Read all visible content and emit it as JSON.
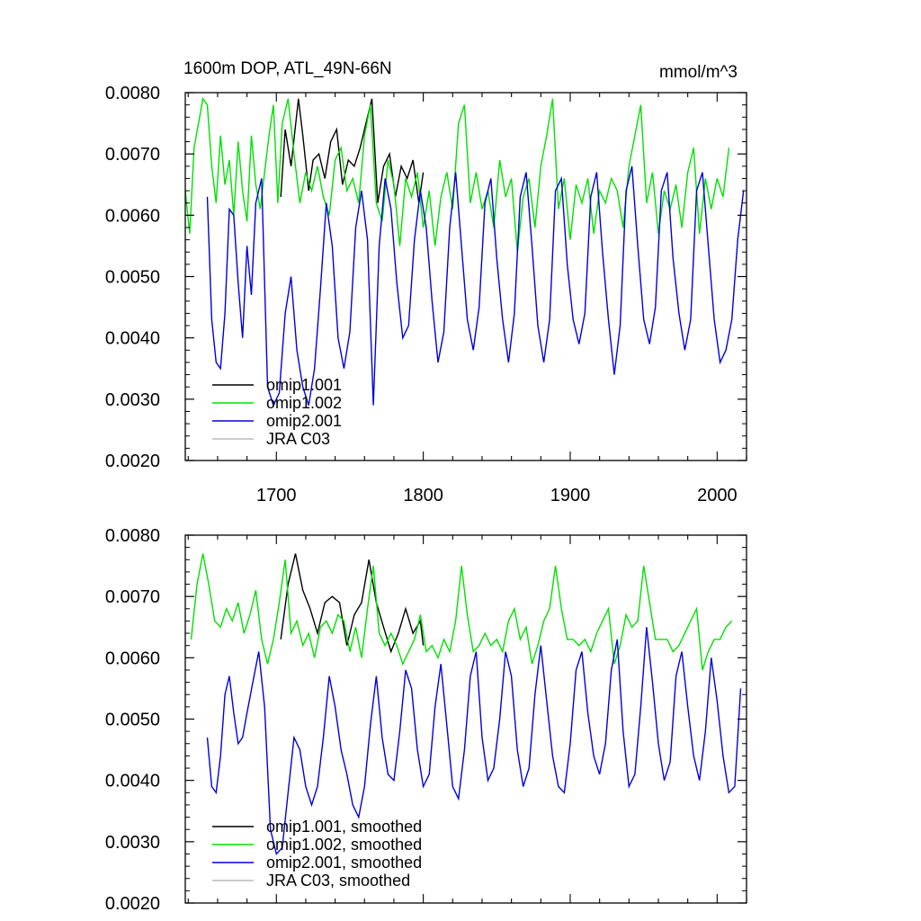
{
  "title_left": "1600m DOP, ATL_49N-66N",
  "title_right": "mmol/m^3",
  "colors": {
    "omip1_001": "#000000",
    "omip1_002": "#00e000",
    "omip2_001": "#0000dd",
    "jra_c03": "#bbbbbb"
  },
  "chart_data": [
    {
      "type": "line",
      "title": "1600m DOP, ATL_49N-66N",
      "units": "mmol/m^3",
      "xlim": [
        1638,
        2020
      ],
      "ylim": [
        0.002,
        0.008
      ],
      "x_ticks": [
        1700,
        1800,
        1900,
        2000
      ],
      "x_tick_labels": [
        "1700",
        "1800",
        "1900",
        "2000"
      ],
      "y_ticks": [
        0.002,
        0.003,
        0.004,
        0.005,
        0.006,
        0.007,
        0.008
      ],
      "y_tick_labels": [
        "0.0020",
        "0.0030",
        "0.0040",
        "0.0050",
        "0.0060",
        "0.0070",
        "0.0080"
      ],
      "legend": [
        "omip1.001",
        "omip1.002",
        "omip2.001",
        "JRA C03"
      ],
      "series": [
        {
          "name": "omip1.001",
          "color": "#000000",
          "x": [
            1703,
            1706,
            1710,
            1715,
            1718,
            1722,
            1725,
            1729,
            1733,
            1737,
            1741,
            1745,
            1749,
            1753,
            1757,
            1761,
            1765,
            1769,
            1773,
            1777,
            1781,
            1785,
            1789,
            1793,
            1797,
            1800
          ],
          "y": [
            0.0063,
            0.0074,
            0.0068,
            0.0079,
            0.0073,
            0.0064,
            0.0069,
            0.007,
            0.0066,
            0.0072,
            0.0074,
            0.0065,
            0.0069,
            0.0068,
            0.0071,
            0.0075,
            0.0079,
            0.0062,
            0.0068,
            0.007,
            0.0063,
            0.0068,
            0.0066,
            0.0069,
            0.0062,
            0.0067
          ]
        },
        {
          "name": "omip1.002",
          "color": "#00e000",
          "x": [
            1638,
            1641,
            1644,
            1647,
            1650,
            1653,
            1656,
            1659,
            1662,
            1665,
            1668,
            1671,
            1674,
            1677,
            1680,
            1683,
            1686,
            1689,
            1692,
            1695,
            1698,
            1701,
            1704,
            1708,
            1712,
            1716,
            1720,
            1724,
            1728,
            1732,
            1736,
            1740,
            1744,
            1748,
            1752,
            1756,
            1760,
            1764,
            1768,
            1772,
            1776,
            1780,
            1784,
            1788,
            1792,
            1796,
            1800,
            1804,
            1808,
            1812,
            1816,
            1820,
            1824,
            1828,
            1832,
            1836,
            1840,
            1844,
            1848,
            1852,
            1856,
            1860,
            1864,
            1868,
            1872,
            1876,
            1880,
            1884,
            1888,
            1892,
            1896,
            1900,
            1904,
            1908,
            1912,
            1916,
            1920,
            1924,
            1928,
            1932,
            1936,
            1940,
            1944,
            1948,
            1952,
            1956,
            1960,
            1964,
            1968,
            1972,
            1976,
            1980,
            1984,
            1988,
            1992,
            1996,
            2000,
            2004,
            2008
          ],
          "y": [
            0.0064,
            0.0057,
            0.0071,
            0.0075,
            0.0079,
            0.0078,
            0.0068,
            0.0062,
            0.0073,
            0.0065,
            0.0069,
            0.006,
            0.0072,
            0.0064,
            0.0059,
            0.0073,
            0.0065,
            0.0061,
            0.0067,
            0.0073,
            0.0078,
            0.0062,
            0.0075,
            0.0079,
            0.007,
            0.0062,
            0.0067,
            0.0064,
            0.0068,
            0.0063,
            0.006,
            0.0069,
            0.0071,
            0.0064,
            0.0066,
            0.0062,
            0.0073,
            0.0078,
            0.0062,
            0.0059,
            0.0069,
            0.0065,
            0.0055,
            0.0066,
            0.0063,
            0.0067,
            0.0058,
            0.0064,
            0.0055,
            0.0063,
            0.0067,
            0.0061,
            0.0075,
            0.0078,
            0.0062,
            0.0067,
            0.0061,
            0.0064,
            0.0058,
            0.0069,
            0.0063,
            0.0066,
            0.0054,
            0.0063,
            0.0066,
            0.0058,
            0.0068,
            0.0073,
            0.0079,
            0.0061,
            0.0066,
            0.0056,
            0.0065,
            0.0062,
            0.0066,
            0.0057,
            0.0064,
            0.0062,
            0.0066,
            0.0064,
            0.0058,
            0.0068,
            0.0073,
            0.0078,
            0.0062,
            0.0067,
            0.0057,
            0.0064,
            0.0061,
            0.0065,
            0.0058,
            0.0067,
            0.0071,
            0.0057,
            0.0066,
            0.0061,
            0.0066,
            0.0063,
            0.0071
          ]
        },
        {
          "name": "omip2.001",
          "color": "#0000dd",
          "x": [
            1653,
            1656,
            1659,
            1662,
            1665,
            1668,
            1671,
            1674,
            1677,
            1680,
            1683,
            1686,
            1690,
            1694,
            1698,
            1702,
            1706,
            1710,
            1714,
            1718,
            1722,
            1726,
            1730,
            1734,
            1738,
            1742,
            1746,
            1750,
            1754,
            1758,
            1762,
            1766,
            1770,
            1774,
            1778,
            1782,
            1786,
            1790,
            1794,
            1798,
            1802,
            1806,
            1810,
            1814,
            1818,
            1822,
            1826,
            1830,
            1834,
            1838,
            1842,
            1846,
            1850,
            1854,
            1858,
            1862,
            1866,
            1870,
            1874,
            1878,
            1882,
            1886,
            1890,
            1894,
            1898,
            1902,
            1906,
            1910,
            1914,
            1918,
            1922,
            1926,
            1930,
            1934,
            1938,
            1942,
            1946,
            1950,
            1954,
            1958,
            1962,
            1966,
            1970,
            1974,
            1978,
            1982,
            1986,
            1990,
            1994,
            1998,
            2002,
            2006,
            2010,
            2014,
            2018
          ],
          "y": [
            0.0063,
            0.0043,
            0.0036,
            0.0035,
            0.0044,
            0.0061,
            0.006,
            0.0049,
            0.004,
            0.0055,
            0.0047,
            0.0062,
            0.0066,
            0.0032,
            0.0029,
            0.0031,
            0.0044,
            0.005,
            0.0038,
            0.0032,
            0.0029,
            0.0035,
            0.0048,
            0.0062,
            0.0055,
            0.004,
            0.0035,
            0.0041,
            0.0058,
            0.0064,
            0.0056,
            0.0029,
            0.0055,
            0.0066,
            0.0061,
            0.0049,
            0.004,
            0.0042,
            0.0056,
            0.0064,
            0.0058,
            0.0046,
            0.0036,
            0.0041,
            0.0058,
            0.0067,
            0.0055,
            0.0043,
            0.0038,
            0.0045,
            0.0062,
            0.0066,
            0.0053,
            0.0043,
            0.0036,
            0.0044,
            0.0063,
            0.0067,
            0.0055,
            0.0042,
            0.0036,
            0.0043,
            0.0064,
            0.0066,
            0.0052,
            0.0043,
            0.0039,
            0.0044,
            0.0063,
            0.0067,
            0.0054,
            0.0043,
            0.0034,
            0.0042,
            0.0064,
            0.0068,
            0.0055,
            0.0043,
            0.0039,
            0.0045,
            0.0064,
            0.0067,
            0.0053,
            0.0044,
            0.0038,
            0.0043,
            0.0064,
            0.0067,
            0.0055,
            0.0043,
            0.0036,
            0.0038,
            0.0043,
            0.0056,
            0.0064
          ]
        },
        {
          "name": "JRA C03",
          "color": "#bbbbbb",
          "x": [],
          "y": []
        }
      ]
    },
    {
      "type": "line",
      "xlim": [
        1638,
        2020
      ],
      "ylim": [
        0.002,
        0.008
      ],
      "x_ticks": [
        1700,
        1800,
        1900,
        2000
      ],
      "y_ticks": [
        0.002,
        0.003,
        0.004,
        0.005,
        0.006,
        0.007,
        0.008
      ],
      "y_tick_labels": [
        "0.0020",
        "0.0030",
        "0.0040",
        "0.0050",
        "0.0060",
        "0.0070",
        "0.0080"
      ],
      "legend": [
        "omip1.001, smoothed",
        "omip1.002, smoothed",
        "omip2.001, smoothed",
        "JRA C03, smoothed"
      ],
      "series": [
        {
          "name": "omip1.001, smoothed",
          "color": "#000000",
          "x": [
            1703,
            1708,
            1713,
            1718,
            1723,
            1728,
            1733,
            1738,
            1743,
            1748,
            1753,
            1758,
            1763,
            1768,
            1773,
            1778,
            1783,
            1788,
            1793,
            1798,
            1800
          ],
          "y": [
            0.0063,
            0.0072,
            0.0077,
            0.0071,
            0.0068,
            0.0064,
            0.0069,
            0.007,
            0.0069,
            0.0062,
            0.0067,
            0.0069,
            0.0076,
            0.0069,
            0.0065,
            0.0061,
            0.0064,
            0.0068,
            0.0064,
            0.0066,
            0.0062
          ]
        },
        {
          "name": "omip1.002, smoothed",
          "color": "#00e000",
          "x": [
            1642,
            1646,
            1650,
            1654,
            1658,
            1662,
            1666,
            1670,
            1674,
            1678,
            1682,
            1686,
            1690,
            1694,
            1698,
            1702,
            1706,
            1710,
            1714,
            1718,
            1722,
            1726,
            1730,
            1734,
            1738,
            1742,
            1746,
            1750,
            1754,
            1758,
            1762,
            1766,
            1770,
            1774,
            1778,
            1782,
            1786,
            1790,
            1794,
            1798,
            1802,
            1806,
            1810,
            1814,
            1818,
            1822,
            1826,
            1830,
            1834,
            1838,
            1842,
            1846,
            1850,
            1854,
            1858,
            1862,
            1866,
            1870,
            1874,
            1878,
            1882,
            1886,
            1890,
            1894,
            1898,
            1902,
            1906,
            1910,
            1914,
            1918,
            1922,
            1926,
            1930,
            1934,
            1938,
            1942,
            1946,
            1950,
            1954,
            1958,
            1962,
            1966,
            1970,
            1974,
            1978,
            1982,
            1986,
            1990,
            1994,
            1998,
            2002,
            2006,
            2010
          ],
          "y": [
            0.0063,
            0.0072,
            0.0077,
            0.0072,
            0.0066,
            0.0065,
            0.0068,
            0.0066,
            0.0069,
            0.0064,
            0.0067,
            0.0071,
            0.0063,
            0.0059,
            0.0063,
            0.0069,
            0.0076,
            0.0064,
            0.0066,
            0.0062,
            0.0064,
            0.006,
            0.0065,
            0.0066,
            0.0064,
            0.0067,
            0.0066,
            0.0061,
            0.0065,
            0.006,
            0.0068,
            0.0075,
            0.0064,
            0.0062,
            0.0064,
            0.0062,
            0.0059,
            0.0061,
            0.0063,
            0.0067,
            0.0061,
            0.0062,
            0.006,
            0.0063,
            0.0061,
            0.0066,
            0.0075,
            0.0067,
            0.0061,
            0.0062,
            0.0064,
            0.0062,
            0.0063,
            0.0061,
            0.0066,
            0.0068,
            0.0063,
            0.0065,
            0.0059,
            0.0062,
            0.0066,
            0.0068,
            0.0075,
            0.0068,
            0.0063,
            0.0063,
            0.0062,
            0.0063,
            0.0061,
            0.0064,
            0.0066,
            0.0068,
            0.0059,
            0.0062,
            0.0067,
            0.0065,
            0.0066,
            0.0075,
            0.0069,
            0.0063,
            0.0063,
            0.0063,
            0.0061,
            0.0062,
            0.0064,
            0.0066,
            0.0068,
            0.0058,
            0.0061,
            0.0063,
            0.0063,
            0.0065,
            0.0066
          ]
        },
        {
          "name": "omip2.001, smoothed",
          "color": "#0000dd",
          "x": [
            1653,
            1656,
            1659,
            1662,
            1665,
            1668,
            1671,
            1674,
            1677,
            1680,
            1684,
            1688,
            1692,
            1696,
            1700,
            1704,
            1708,
            1712,
            1716,
            1720,
            1724,
            1728,
            1732,
            1736,
            1740,
            1744,
            1748,
            1752,
            1756,
            1760,
            1764,
            1768,
            1772,
            1776,
            1780,
            1784,
            1788,
            1792,
            1796,
            1800,
            1804,
            1808,
            1812,
            1816,
            1820,
            1824,
            1828,
            1832,
            1836,
            1840,
            1844,
            1848,
            1852,
            1856,
            1860,
            1864,
            1868,
            1872,
            1876,
            1880,
            1884,
            1888,
            1892,
            1896,
            1900,
            1904,
            1908,
            1912,
            1916,
            1920,
            1924,
            1928,
            1932,
            1936,
            1940,
            1944,
            1948,
            1952,
            1956,
            1960,
            1964,
            1968,
            1972,
            1976,
            1980,
            1984,
            1988,
            1992,
            1996,
            2000,
            2004,
            2008,
            2012,
            2016
          ],
          "y": [
            0.0047,
            0.0039,
            0.0038,
            0.0044,
            0.0054,
            0.0057,
            0.0051,
            0.0046,
            0.0047,
            0.0051,
            0.0056,
            0.0061,
            0.0052,
            0.0032,
            0.0028,
            0.0029,
            0.0038,
            0.0047,
            0.0045,
            0.0039,
            0.0036,
            0.0039,
            0.0047,
            0.0057,
            0.0052,
            0.0045,
            0.0041,
            0.0036,
            0.0034,
            0.0039,
            0.0049,
            0.0057,
            0.0047,
            0.0041,
            0.004,
            0.0048,
            0.0058,
            0.0055,
            0.0045,
            0.0039,
            0.0041,
            0.0052,
            0.0059,
            0.0049,
            0.0039,
            0.0037,
            0.0045,
            0.0057,
            0.0061,
            0.0047,
            0.004,
            0.0042,
            0.005,
            0.0061,
            0.0057,
            0.0045,
            0.0039,
            0.0042,
            0.0054,
            0.0062,
            0.0053,
            0.0044,
            0.0039,
            0.0038,
            0.0046,
            0.0058,
            0.0061,
            0.0051,
            0.0044,
            0.0041,
            0.0046,
            0.0058,
            0.0063,
            0.0048,
            0.0039,
            0.0041,
            0.0052,
            0.0065,
            0.0056,
            0.0046,
            0.004,
            0.0043,
            0.0057,
            0.0061,
            0.0052,
            0.0044,
            0.004,
            0.0048,
            0.006,
            0.0053,
            0.0044,
            0.0038,
            0.0039,
            0.0055
          ]
        },
        {
          "name": "JRA C03, smoothed",
          "color": "#bbbbbb",
          "x": [],
          "y": []
        }
      ]
    }
  ]
}
